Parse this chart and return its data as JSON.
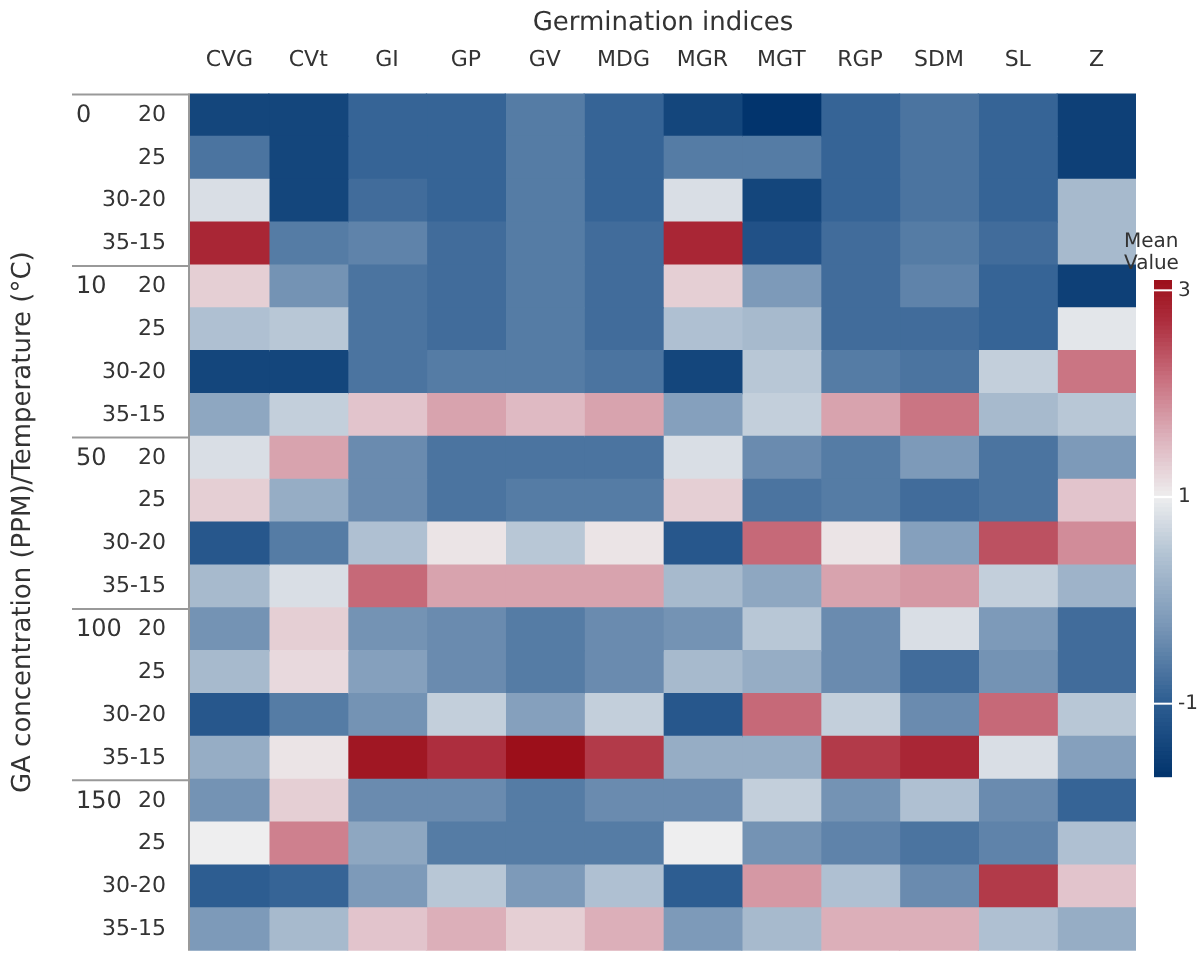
{
  "chart_data": {
    "type": "heatmap",
    "xlabel": "Germination indices",
    "ylabel": "GA concentration (PPM)/Temperature (°C)",
    "clabel": "Mean Value",
    "categories": [
      "CVG",
      "CVt",
      "GI",
      "GP",
      "GV",
      "MDG",
      "MGR",
      "MGT",
      "RGP",
      "SDM",
      "SL",
      "Z"
    ],
    "y_categories": [
      "20",
      "25",
      "30-20",
      "35-15",
      "20",
      "25",
      "30-20",
      "35-15",
      "20",
      "25",
      "30-20",
      "35-15",
      "20",
      "25",
      "30-20",
      "35-15",
      "20",
      "25",
      "30-20",
      "35-15"
    ],
    "y2_categories": [
      "0",
      null,
      null,
      null,
      "10",
      null,
      null,
      null,
      "50",
      null,
      null,
      null,
      "100",
      null,
      null,
      null,
      "150",
      null,
      null,
      null
    ],
    "cells": [
      [
        -1.4,
        -1.4,
        -0.9,
        -0.9,
        -0.6,
        -0.9,
        -1.4,
        -1.7,
        -0.9,
        -0.7,
        -0.9,
        -1.5
      ],
      [
        -0.7,
        -1.4,
        -0.9,
        -0.9,
        -0.6,
        -0.9,
        -0.6,
        -0.6,
        -0.9,
        -0.7,
        -0.9,
        -1.5
      ],
      [
        0.8,
        -1.4,
        -0.8,
        -0.9,
        -0.6,
        -0.9,
        0.8,
        -1.4,
        -0.9,
        -0.7,
        -0.9,
        0.3
      ],
      [
        2.8,
        -0.6,
        -0.5,
        -0.8,
        -0.6,
        -0.8,
        2.8,
        -1.2,
        -0.8,
        -0.6,
        -0.8,
        0.3
      ],
      [
        1.3,
        -0.3,
        -0.7,
        -0.8,
        -0.6,
        -0.8,
        1.3,
        -0.2,
        -0.8,
        -0.5,
        -0.9,
        -1.5
      ],
      [
        0.4,
        0.5,
        -0.7,
        -0.8,
        -0.6,
        -0.8,
        0.4,
        0.3,
        -0.8,
        -0.8,
        -0.9,
        0.9
      ],
      [
        -1.4,
        -1.4,
        -0.7,
        -0.6,
        -0.6,
        -0.7,
        -1.4,
        0.5,
        -0.6,
        -0.7,
        0.6,
        2.1
      ],
      [
        0.0,
        0.6,
        1.4,
        1.7,
        1.5,
        1.7,
        -0.1,
        0.6,
        1.7,
        2.1,
        0.3,
        0.5
      ],
      [
        0.8,
        1.7,
        -0.4,
        -0.7,
        -0.7,
        -0.7,
        0.8,
        -0.4,
        -0.6,
        -0.2,
        -0.7,
        -0.2
      ],
      [
        1.3,
        0.1,
        -0.4,
        -0.7,
        -0.6,
        -0.6,
        1.3,
        -0.7,
        -0.6,
        -0.8,
        -0.7,
        1.4
      ],
      [
        -1.1,
        -0.6,
        0.4,
        1.1,
        0.5,
        1.1,
        -1.1,
        2.2,
        1.1,
        -0.1,
        2.4,
        1.9
      ],
      [
        0.3,
        0.8,
        2.2,
        1.7,
        1.7,
        1.7,
        0.3,
        0.0,
        1.7,
        1.8,
        0.6,
        0.2
      ],
      [
        -0.3,
        1.3,
        -0.3,
        -0.4,
        -0.6,
        -0.4,
        -0.3,
        0.5,
        -0.4,
        0.8,
        -0.2,
        -0.8
      ],
      [
        0.3,
        1.2,
        -0.1,
        -0.4,
        -0.6,
        -0.4,
        0.3,
        0.1,
        -0.4,
        -0.8,
        -0.3,
        -0.8
      ],
      [
        -1.1,
        -0.6,
        -0.3,
        0.6,
        -0.1,
        0.6,
        -1.1,
        2.2,
        0.6,
        -0.4,
        2.2,
        0.5
      ],
      [
        0.1,
        1.1,
        3.0,
        2.7,
        3.1,
        2.6,
        0.1,
        0.1,
        2.6,
        2.8,
        0.8,
        -0.1
      ],
      [
        -0.3,
        1.3,
        -0.4,
        -0.4,
        -0.6,
        -0.4,
        -0.4,
        0.6,
        -0.3,
        0.4,
        -0.4,
        -0.9
      ],
      [
        1.0,
        2.0,
        0.0,
        -0.6,
        -0.6,
        -0.6,
        1.0,
        -0.3,
        -0.5,
        -0.7,
        -0.5,
        0.4
      ],
      [
        -1.0,
        -0.9,
        -0.2,
        0.5,
        -0.2,
        0.4,
        -1.0,
        1.8,
        0.4,
        -0.4,
        2.6,
        1.4
      ],
      [
        -0.2,
        0.3,
        1.4,
        1.6,
        1.3,
        1.6,
        -0.2,
        0.3,
        1.6,
        1.6,
        0.4,
        0.1
      ]
    ],
    "clim": [
      -1.7,
      3.1
    ],
    "cticks": [
      3,
      1,
      -1
    ]
  }
}
